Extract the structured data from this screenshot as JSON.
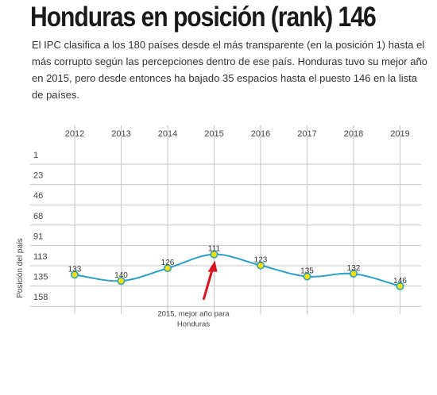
{
  "header": {
    "title": "Honduras en posición (rank) 146",
    "subtitle": "El IPC clasifica a los 180 países desde el más transparente (en la posición 1) hasta el más corrupto según las percepciones dentro de ese país. Honduras tuvo su mejor año en 2015, pero desde entonces ha bajado 35 espacios hasta el puesto 146 en la lista de países."
  },
  "chart_data": {
    "type": "line",
    "title": "",
    "xlabel": "",
    "ylabel": "Posición del país",
    "x": [
      "2012",
      "2013",
      "2014",
      "2015",
      "2016",
      "2017",
      "2018",
      "2019"
    ],
    "series": [
      {
        "values": [
          133,
          140,
          126,
          111,
          123,
          135,
          132,
          146
        ]
      }
    ],
    "y_ticks": [
      1,
      23,
      46,
      68,
      91,
      113,
      135,
      158
    ],
    "ylim": [
      1,
      158
    ],
    "y_inverted": true,
    "grid": true,
    "annotation": {
      "x": "2015",
      "line1": "2015, mejor año para",
      "line2": "Honduras"
    },
    "colors": {
      "line": "#2a9fc9",
      "marker_fill": "#ffe000",
      "marker_stroke": "#2aa1c6",
      "arrow": "#d7141c",
      "grid": "#c6c6c6"
    }
  }
}
